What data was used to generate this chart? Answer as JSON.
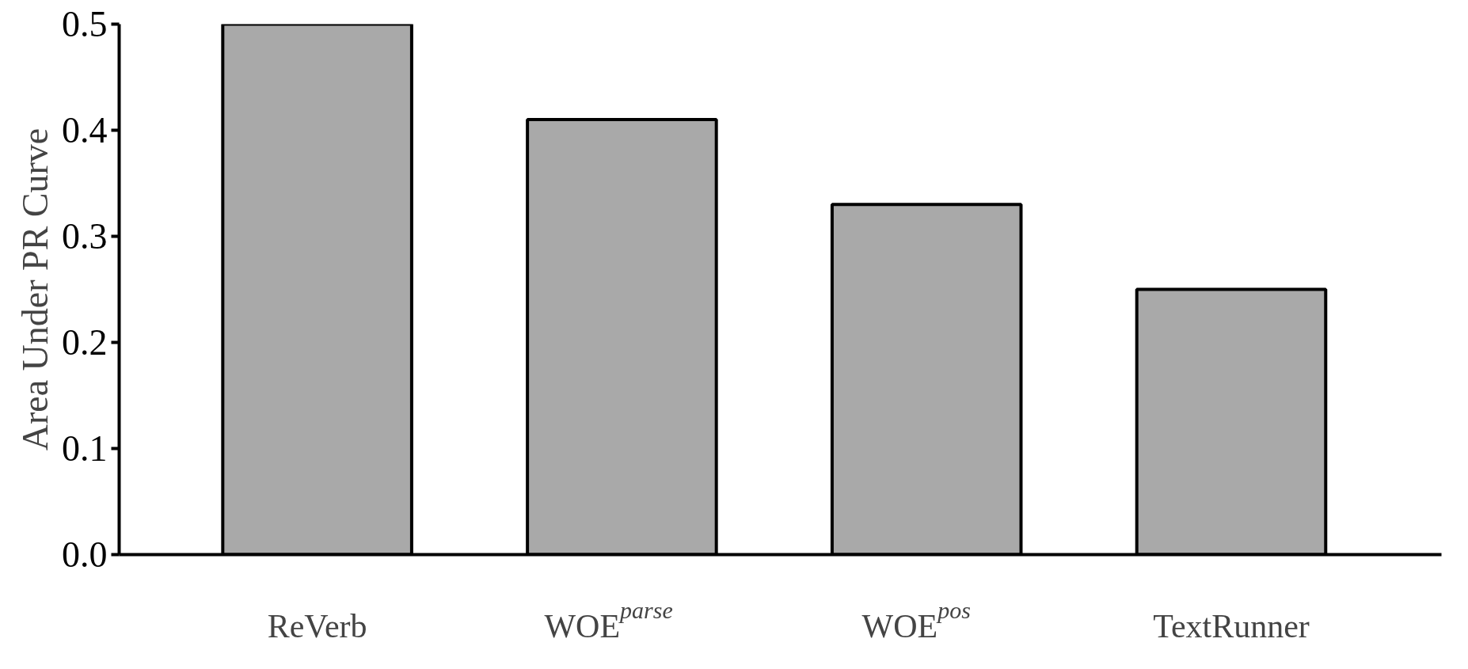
{
  "chart_data": {
    "type": "bar",
    "ylabel": "Area Under PR Curve",
    "categories": [
      "ReVerb",
      "WOE$^{parse}$",
      "WOE$^{pos}$",
      "TextRunner"
    ],
    "values": [
      0.5,
      0.41,
      0.33,
      0.25
    ],
    "color": "#a9a9a9",
    "ylim": [
      0,
      0.5
    ],
    "yticks": [
      {
        "value": 0,
        "label": "0.0"
      },
      0.1,
      0.2,
      0.3,
      0.4,
      0.5
    ],
    "grid": false
  }
}
